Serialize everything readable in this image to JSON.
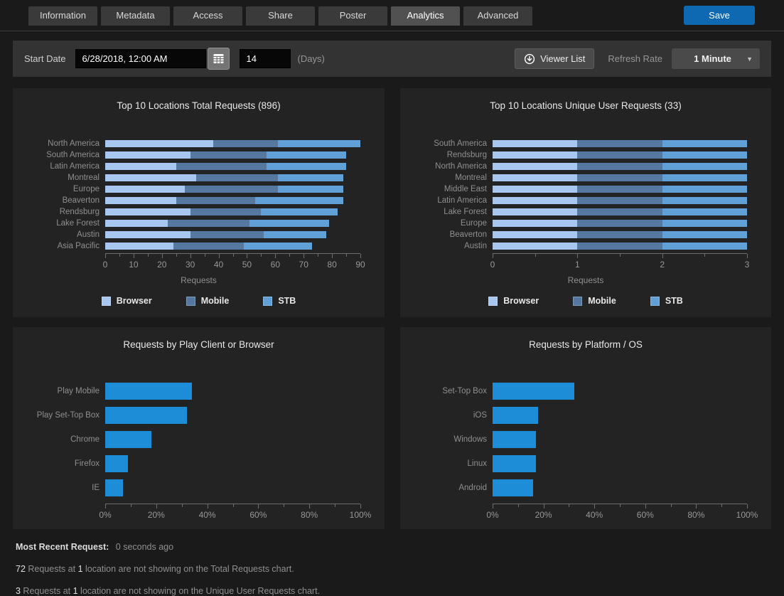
{
  "tabs": {
    "items": [
      {
        "label": "Information",
        "active": false
      },
      {
        "label": "Metadata",
        "active": false
      },
      {
        "label": "Access",
        "active": false
      },
      {
        "label": "Share",
        "active": false
      },
      {
        "label": "Poster",
        "active": false
      },
      {
        "label": "Analytics",
        "active": true
      },
      {
        "label": "Advanced",
        "active": false
      }
    ],
    "save_label": "Save"
  },
  "toolbar": {
    "start_date_label": "Start Date",
    "start_date_value": "6/28/2018, 12:00 AM",
    "days_value": "14",
    "days_label": "(Days)",
    "viewer_list_label": "Viewer List",
    "refresh_rate_label": "Refresh Rate",
    "refresh_rate_value": "1 Minute"
  },
  "colors": {
    "accent_blue": "#0e68b2",
    "series": {
      "Browser": "#a7c6f0",
      "Mobile": "#5578a0",
      "STB": "#60a0d7"
    },
    "bar_single": "#1e8dd8",
    "panel_bg": "#232323",
    "page_bg": "#1a1a1a",
    "toolbar_bg": "#333333"
  },
  "chart_data": [
    {
      "type": "bar",
      "orientation": "horizontal",
      "stacked": true,
      "title": "Top 10 Locations Total Requests (896)",
      "xlabel": "Requests",
      "xlim": [
        0,
        90
      ],
      "tick_values": [
        0,
        10,
        20,
        30,
        40,
        50,
        60,
        70,
        80,
        90
      ],
      "tick_labels": [
        "0",
        "10",
        "20",
        "30",
        "40",
        "50",
        "60",
        "70",
        "80",
        "90"
      ],
      "legend": [
        "Browser",
        "Mobile",
        "STB"
      ],
      "categories": [
        "North America",
        "South America",
        "Latin America",
        "Montreal",
        "Europe",
        "Beaverton",
        "Rendsburg",
        "Lake Forest",
        "Austin",
        "Asia Pacific"
      ],
      "series": [
        {
          "name": "Browser",
          "values": [
            38,
            30,
            25,
            32,
            28,
            25,
            30,
            22,
            30,
            24
          ]
        },
        {
          "name": "Mobile",
          "values": [
            23,
            27,
            32,
            29,
            33,
            28,
            25,
            29,
            26,
            25
          ]
        },
        {
          "name": "STB",
          "values": [
            29,
            28,
            28,
            23,
            23,
            31,
            27,
            28,
            22,
            24
          ]
        }
      ]
    },
    {
      "type": "bar",
      "orientation": "horizontal",
      "stacked": true,
      "title": "Top 10 Locations Unique User Requests (33)",
      "xlabel": "Requests",
      "xlim": [
        0,
        3
      ],
      "tick_values": [
        0,
        1,
        2,
        3
      ],
      "tick_labels": [
        "0",
        "1",
        "2",
        "3"
      ],
      "legend": [
        "Browser",
        "Mobile",
        "STB"
      ],
      "categories": [
        "South America",
        "Rendsburg",
        "North America",
        "Montreal",
        "Middle East",
        "Latin America",
        "Lake Forest",
        "Europe",
        "Beaverton",
        "Austin"
      ],
      "series": [
        {
          "name": "Browser",
          "values": [
            1,
            1,
            1,
            1,
            1,
            1,
            1,
            1,
            1,
            1
          ]
        },
        {
          "name": "Mobile",
          "values": [
            1,
            1,
            1,
            1,
            1,
            1,
            1,
            1,
            1,
            1
          ]
        },
        {
          "name": "STB",
          "values": [
            1,
            1,
            1,
            1,
            1,
            1,
            1,
            1,
            1,
            1
          ]
        }
      ]
    },
    {
      "type": "bar",
      "orientation": "horizontal",
      "stacked": false,
      "title": "Requests by Play Client or Browser",
      "xlabel": "",
      "xlim": [
        0,
        100
      ],
      "tick_values": [
        0,
        20,
        40,
        60,
        80,
        100
      ],
      "tick_labels": [
        "0%",
        "20%",
        "40%",
        "60%",
        "80%",
        "100%"
      ],
      "categories": [
        "Play Mobile",
        "Play Set-Top Box",
        "Chrome",
        "Firefox",
        "IE"
      ],
      "values": [
        34,
        32,
        18,
        9,
        7
      ]
    },
    {
      "type": "bar",
      "orientation": "horizontal",
      "stacked": false,
      "title": "Requests by Platform / OS",
      "xlabel": "",
      "xlim": [
        0,
        100
      ],
      "tick_values": [
        0,
        20,
        40,
        60,
        80,
        100
      ],
      "tick_labels": [
        "0%",
        "20%",
        "40%",
        "60%",
        "80%",
        "100%"
      ],
      "categories": [
        "Set-Top Box",
        "iOS",
        "Windows",
        "Linux",
        "Android"
      ],
      "values": [
        32,
        18,
        17,
        17,
        16
      ]
    }
  ],
  "footer": {
    "most_recent_label": "Most Recent Request:",
    "most_recent_value": "0 seconds ago",
    "notes": [
      {
        "parts": [
          {
            "text": "72",
            "strong": true
          },
          {
            "text": " Requests at ",
            "strong": false
          },
          {
            "text": "1",
            "strong": true
          },
          {
            "text": " location are not showing on the Total Requests chart.",
            "strong": false
          }
        ]
      },
      {
        "parts": [
          {
            "text": "3",
            "strong": true
          },
          {
            "text": " Requests at ",
            "strong": false
          },
          {
            "text": "1",
            "strong": true
          },
          {
            "text": " location are not showing on the Unique User Requests chart.",
            "strong": false
          }
        ]
      }
    ]
  }
}
